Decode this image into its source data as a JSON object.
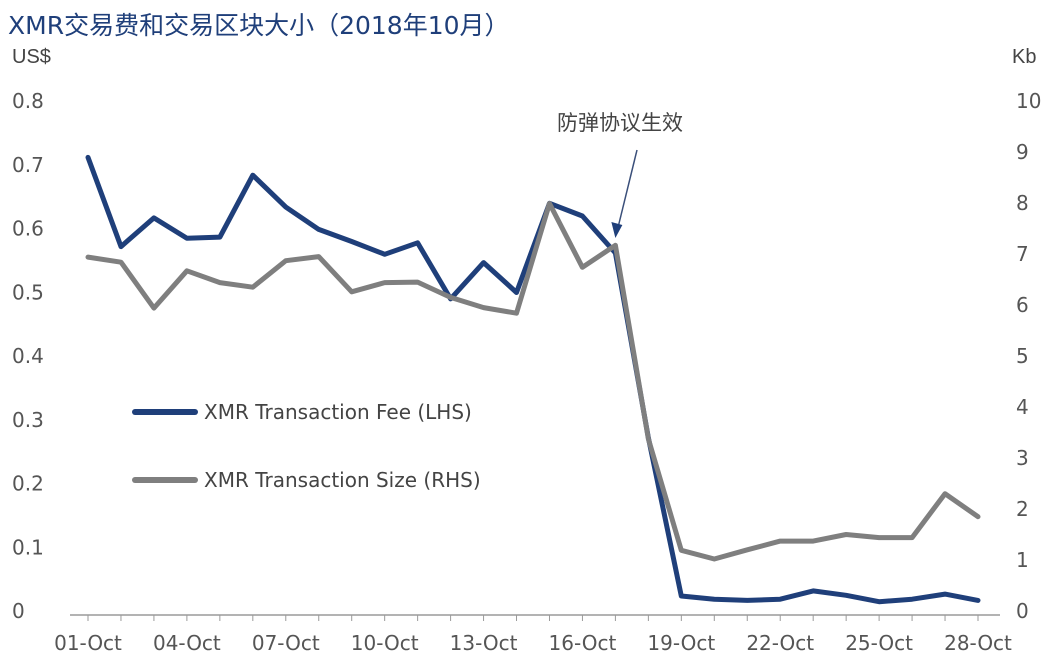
{
  "chart_data": {
    "type": "line",
    "title": "XMR交易费和交易区块大小（2018年10月）",
    "ylabel_left": "US$",
    "ylabel_right": "Kb",
    "ylim_left": [
      0,
      0.8
    ],
    "ylim_right": [
      0,
      10
    ],
    "yticks_left": [
      "0",
      "0.1",
      "0.2",
      "0.3",
      "0.4",
      "0.5",
      "0.6",
      "0.7",
      "0.8"
    ],
    "yticks_right": [
      "0",
      "1",
      "2",
      "3",
      "4",
      "5",
      "6",
      "7",
      "8",
      "9",
      "10"
    ],
    "x": [
      "01-Oct",
      "02-Oct",
      "03-Oct",
      "04-Oct",
      "05-Oct",
      "06-Oct",
      "07-Oct",
      "08-Oct",
      "09-Oct",
      "10-Oct",
      "11-Oct",
      "12-Oct",
      "13-Oct",
      "14-Oct",
      "15-Oct",
      "16-Oct",
      "17-Oct",
      "18-Oct",
      "19-Oct",
      "20-Oct",
      "21-Oct",
      "22-Oct",
      "23-Oct",
      "24-Oct",
      "25-Oct",
      "26-Oct",
      "27-Oct",
      "28-Oct"
    ],
    "xticks": [
      "01-Oct",
      "04-Oct",
      "07-Oct",
      "10-Oct",
      "13-Oct",
      "16-Oct",
      "19-Oct",
      "22-Oct",
      "25-Oct",
      "28-Oct"
    ],
    "series": [
      {
        "name": "XMR Transaction Fee (LHS)",
        "axis": "left",
        "color": "#1f3f7a",
        "values": [
          0.71,
          0.57,
          0.615,
          0.583,
          0.585,
          0.682,
          0.632,
          0.597,
          0.578,
          0.558,
          0.576,
          0.488,
          0.545,
          0.498,
          0.638,
          0.618,
          0.56,
          0.27,
          0.022,
          0.017,
          0.015,
          0.017,
          0.03,
          0.023,
          0.013,
          0.017,
          0.025,
          0.015
        ]
      },
      {
        "name": "XMR Transaction Size (RHS)",
        "axis": "right",
        "color": "#7f7f7f",
        "values": [
          6.92,
          6.82,
          5.92,
          6.65,
          6.42,
          6.33,
          6.85,
          6.93,
          6.24,
          6.42,
          6.43,
          6.13,
          5.93,
          5.82,
          7.97,
          6.72,
          7.15,
          3.35,
          1.17,
          1.0,
          1.18,
          1.35,
          1.35,
          1.48,
          1.42,
          1.42,
          2.28,
          1.83
        ]
      }
    ],
    "annotation": {
      "text": "防弹协议生效",
      "at": "18-Oct"
    },
    "legend": "middle-left",
    "grid": false
  }
}
